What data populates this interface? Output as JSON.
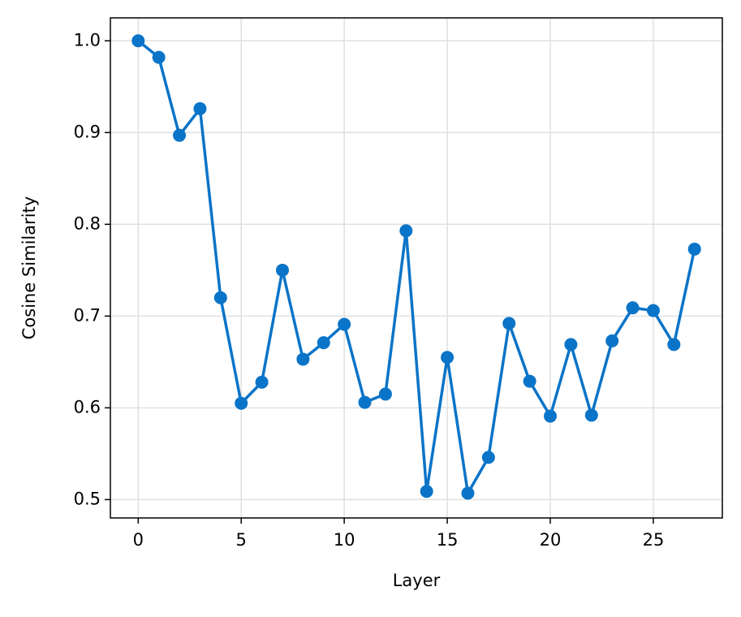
{
  "chart_data": {
    "type": "line",
    "x_label": "Layer",
    "y_label": "Cosine Similarity",
    "x": [
      0,
      1,
      2,
      3,
      4,
      5,
      6,
      7,
      8,
      9,
      10,
      11,
      12,
      13,
      14,
      15,
      16,
      17,
      18,
      19,
      20,
      21,
      22,
      23,
      24,
      25,
      26,
      27
    ],
    "series": [
      {
        "color": "#0a74c8",
        "values": [
          1.0,
          0.982,
          0.897,
          0.926,
          0.72,
          0.605,
          0.628,
          0.75,
          0.653,
          0.671,
          0.691,
          0.606,
          0.615,
          0.793,
          0.509,
          0.655,
          0.507,
          0.546,
          0.692,
          0.629,
          0.591,
          0.669,
          0.592,
          0.673,
          0.709,
          0.706,
          0.669,
          0.773
        ]
      }
    ],
    "xlim": [
      -1.35,
      28.35
    ],
    "ylim": [
      0.48,
      1.025
    ],
    "xticks": [
      0,
      5,
      10,
      15,
      20,
      25
    ],
    "yticks": [
      {
        "value": 0.5,
        "label": "0.5"
      },
      {
        "value": 0.6,
        "label": "0.6"
      },
      {
        "value": 0.7,
        "label": "0.7"
      },
      {
        "value": 0.8,
        "label": "0.8"
      },
      {
        "value": 0.9,
        "label": "0.9"
      },
      {
        "value": 1.0,
        "label": "1.0"
      }
    ],
    "grid": true
  }
}
